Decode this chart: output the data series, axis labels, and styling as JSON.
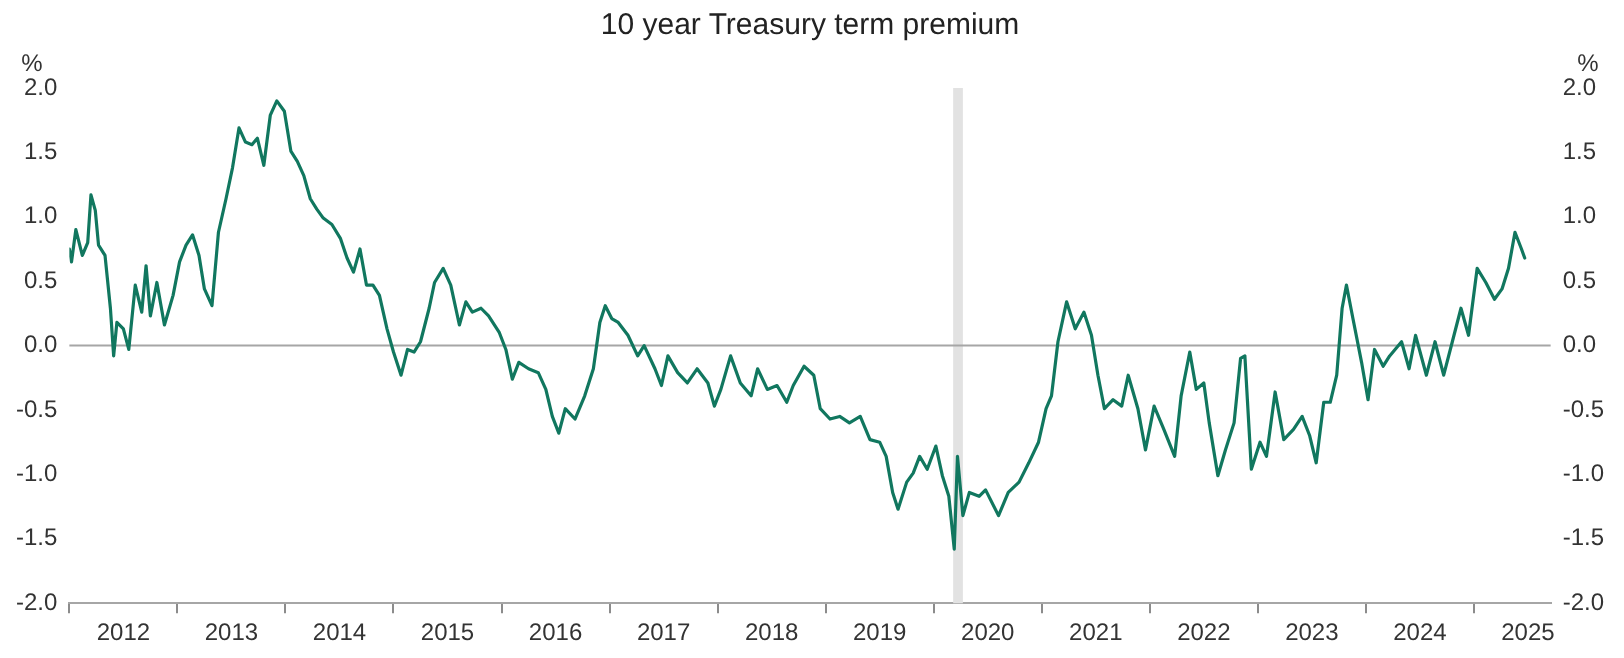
{
  "chart_data": {
    "type": "line",
    "title": "10 year Treasury term premium",
    "ylabel": "%",
    "y2label": "%",
    "series": [
      {
        "color": "#11775f",
        "x": [
          2012.0,
          2012.02,
          2012.06,
          2012.12,
          2012.17,
          2012.2,
          2012.24,
          2012.27,
          2012.33,
          2012.38,
          2012.41,
          2012.44,
          2012.5,
          2012.55,
          2012.61,
          2012.67,
          2012.71,
          2012.75,
          2012.81,
          2012.88,
          2012.96,
          2013.02,
          2013.08,
          2013.14,
          2013.2,
          2013.25,
          2013.32,
          2013.38,
          2013.45,
          2013.51,
          2013.57,
          2013.63,
          2013.69,
          2013.74,
          2013.8,
          2013.86,
          2013.92,
          2013.99,
          2014.05,
          2014.11,
          2014.17,
          2014.23,
          2014.29,
          2014.35,
          2014.43,
          2014.51,
          2014.57,
          2014.63,
          2014.69,
          2014.75,
          2014.81,
          2014.87,
          2014.94,
          2015.0,
          2015.07,
          2015.13,
          2015.19,
          2015.25,
          2015.33,
          2015.38,
          2015.46,
          2015.53,
          2015.61,
          2015.67,
          2015.73,
          2015.81,
          2015.88,
          2015.98,
          2016.04,
          2016.1,
          2016.16,
          2016.25,
          2016.34,
          2016.41,
          2016.47,
          2016.53,
          2016.59,
          2016.68,
          2016.77,
          2016.85,
          2016.91,
          2016.96,
          2017.02,
          2017.08,
          2017.17,
          2017.26,
          2017.32,
          2017.42,
          2017.48,
          2017.54,
          2017.63,
          2017.72,
          2017.81,
          2017.91,
          2017.97,
          2018.03,
          2018.12,
          2018.21,
          2018.31,
          2018.37,
          2018.46,
          2018.55,
          2018.64,
          2018.7,
          2018.8,
          2018.89,
          2018.95,
          2019.04,
          2019.13,
          2019.22,
          2019.32,
          2019.41,
          2019.5,
          2019.56,
          2019.62,
          2019.67,
          2019.75,
          2019.81,
          2019.87,
          2019.94,
          2020.02,
          2020.08,
          2020.14,
          2020.19,
          2020.22,
          2020.27,
          2020.33,
          2020.42,
          2020.48,
          2020.6,
          2020.69,
          2020.79,
          2020.88,
          2020.97,
          2021.04,
          2021.09,
          2021.15,
          2021.23,
          2021.31,
          2021.39,
          2021.46,
          2021.52,
          2021.58,
          2021.66,
          2021.74,
          2021.8,
          2021.89,
          2021.96,
          2022.04,
          2022.13,
          2022.23,
          2022.29,
          2022.37,
          2022.43,
          2022.5,
          2022.55,
          2022.63,
          2022.7,
          2022.78,
          2022.84,
          2022.88,
          2022.94,
          2023.02,
          2023.08,
          2023.16,
          2023.24,
          2023.33,
          2023.41,
          2023.48,
          2023.54,
          2023.61,
          2023.67,
          2023.73,
          2023.78,
          2023.82,
          2023.88,
          2023.96,
          2024.02,
          2024.08,
          2024.16,
          2024.22,
          2024.33,
          2024.4,
          2024.46,
          2024.56,
          2024.64,
          2024.72,
          2024.8,
          2024.88,
          2024.95,
          2025.03,
          2025.11,
          2025.19,
          2025.26,
          2025.32,
          2025.38,
          2025.44,
          2025.47
        ],
        "values": [
          0.75,
          0.65,
          0.9,
          0.7,
          0.8,
          1.17,
          1.05,
          0.78,
          0.7,
          0.29,
          -0.08,
          0.18,
          0.13,
          -0.03,
          0.47,
          0.26,
          0.62,
          0.23,
          0.49,
          0.16,
          0.39,
          0.65,
          0.78,
          0.86,
          0.7,
          0.44,
          0.31,
          0.88,
          1.14,
          1.38,
          1.69,
          1.58,
          1.56,
          1.61,
          1.4,
          1.79,
          1.9,
          1.82,
          1.51,
          1.43,
          1.32,
          1.14,
          1.06,
          0.99,
          0.94,
          0.83,
          0.68,
          0.57,
          0.75,
          0.47,
          0.47,
          0.39,
          0.13,
          -0.05,
          -0.23,
          -0.03,
          -0.05,
          0.03,
          0.29,
          0.49,
          0.6,
          0.47,
          0.16,
          0.34,
          0.26,
          0.29,
          0.23,
          0.1,
          -0.03,
          -0.26,
          -0.13,
          -0.18,
          -0.21,
          -0.34,
          -0.55,
          -0.68,
          -0.49,
          -0.57,
          -0.39,
          -0.18,
          0.18,
          0.31,
          0.21,
          0.18,
          0.08,
          -0.08,
          0.0,
          -0.18,
          -0.31,
          -0.08,
          -0.21,
          -0.29,
          -0.18,
          -0.29,
          -0.47,
          -0.34,
          -0.08,
          -0.29,
          -0.39,
          -0.18,
          -0.34,
          -0.31,
          -0.44,
          -0.31,
          -0.16,
          -0.23,
          -0.49,
          -0.57,
          -0.55,
          -0.6,
          -0.55,
          -0.73,
          -0.75,
          -0.86,
          -1.14,
          -1.27,
          -1.06,
          -0.99,
          -0.86,
          -0.96,
          -0.78,
          -1.01,
          -1.17,
          -1.58,
          -0.86,
          -1.32,
          -1.14,
          -1.17,
          -1.12,
          -1.32,
          -1.14,
          -1.06,
          -0.91,
          -0.75,
          -0.49,
          -0.39,
          0.03,
          0.34,
          0.13,
          0.26,
          0.08,
          -0.23,
          -0.49,
          -0.42,
          -0.47,
          -0.23,
          -0.49,
          -0.81,
          -0.47,
          -0.65,
          -0.86,
          -0.39,
          -0.05,
          -0.34,
          -0.29,
          -0.6,
          -1.01,
          -0.81,
          -0.6,
          -0.1,
          -0.08,
          -0.96,
          -0.75,
          -0.86,
          -0.36,
          -0.73,
          -0.65,
          -0.55,
          -0.7,
          -0.91,
          -0.44,
          -0.44,
          -0.23,
          0.29,
          0.47,
          0.21,
          -0.13,
          -0.42,
          -0.03,
          -0.16,
          -0.08,
          0.03,
          -0.18,
          0.08,
          -0.23,
          0.03,
          -0.23,
          0.03,
          0.29,
          0.08,
          0.6,
          0.49,
          0.36,
          0.44,
          0.6,
          0.88,
          0.75,
          0.68
        ]
      }
    ],
    "xlim": [
      2012,
      2025.71
    ],
    "xticks": [
      {
        "value": 2012,
        "label": null
      },
      {
        "value": 2012.5,
        "label": "2012"
      },
      {
        "value": 2013,
        "label": null
      },
      {
        "value": 2013.5,
        "label": "2013"
      },
      {
        "value": 2014,
        "label": null
      },
      {
        "value": 2014.5,
        "label": "2014"
      },
      {
        "value": 2015,
        "label": null
      },
      {
        "value": 2015.5,
        "label": "2015"
      },
      {
        "value": 2016,
        "label": null
      },
      {
        "value": 2016.5,
        "label": "2016"
      },
      {
        "value": 2017,
        "label": null
      },
      {
        "value": 2017.5,
        "label": "2017"
      },
      {
        "value": 2018,
        "label": null
      },
      {
        "value": 2018.5,
        "label": "2018"
      },
      {
        "value": 2019,
        "label": null
      },
      {
        "value": 2019.5,
        "label": "2019"
      },
      {
        "value": 2020,
        "label": null
      },
      {
        "value": 2020.5,
        "label": "2020"
      },
      {
        "value": 2021,
        "label": null
      },
      {
        "value": 2021.5,
        "label": "2021"
      },
      {
        "value": 2022,
        "label": null
      },
      {
        "value": 2022.5,
        "label": "2022"
      },
      {
        "value": 2023,
        "label": null
      },
      {
        "value": 2023.5,
        "label": "2023"
      },
      {
        "value": 2024,
        "label": null
      },
      {
        "value": 2024.5,
        "label": "2024"
      },
      {
        "value": 2025,
        "label": null
      },
      {
        "value": 2025.5,
        "label": "2025"
      }
    ],
    "ylim": [
      -2,
      2
    ],
    "yticks": [
      {
        "value": -2,
        "label": "-2.0"
      },
      {
        "value": -1.5,
        "label": "-1.5"
      },
      {
        "value": -1,
        "label": "-1.0"
      },
      {
        "value": -0.5,
        "label": "-0.5"
      },
      {
        "value": 0,
        "label": "0.0"
      },
      {
        "value": 0.5,
        "label": "0.5"
      },
      {
        "value": 1,
        "label": "1.0"
      },
      {
        "value": 1.5,
        "label": "1.5"
      },
      {
        "value": 2,
        "label": "2.0"
      }
    ],
    "y2lim": [
      -2,
      2
    ],
    "y2ticks": [
      {
        "value": -2,
        "label": "-2.0"
      },
      {
        "value": -1.5,
        "label": "-1.5"
      },
      {
        "value": -1,
        "label": "-1.0"
      },
      {
        "value": -0.5,
        "label": "-0.5"
      },
      {
        "value": 0,
        "label": "0.0"
      },
      {
        "value": 0.5,
        "label": "0.5"
      },
      {
        "value": 1,
        "label": "1.0"
      },
      {
        "value": 1.5,
        "label": "1.5"
      },
      {
        "value": 2,
        "label": "2.0"
      }
    ],
    "ref_lines": [
      {
        "axis": "y",
        "value": 0,
        "color": "#a6a6a6"
      }
    ],
    "bands": [
      {
        "axis": "x",
        "from": 2020.18,
        "to": 2020.27,
        "color": "#e2e2e2"
      }
    ],
    "grid": false,
    "legend": false,
    "marker": "none",
    "line_style": "solid"
  }
}
